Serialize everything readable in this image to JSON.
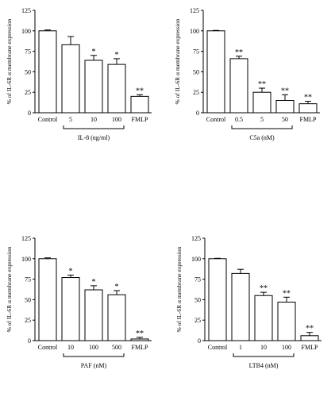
{
  "ylabel": "% of IL-6R α membrane expression",
  "yticks": [
    "0",
    "25",
    "50",
    "75",
    "100",
    "125"
  ],
  "ylim": [
    0,
    125
  ],
  "chart_data": [
    {
      "type": "bar",
      "categories": [
        "Control",
        "5",
        "10",
        "100",
        "FMLP"
      ],
      "values": [
        100,
        83,
        64,
        59,
        20
      ],
      "errors": [
        1,
        10,
        6,
        7,
        2
      ],
      "annotations": [
        "",
        "",
        "*",
        "*",
        "**"
      ],
      "group_label": "IL-8 (ng/ml)",
      "group_span": [
        1,
        3
      ],
      "ylabel": "% of IL-6R α membrane expression",
      "ylim": [
        0,
        125
      ]
    },
    {
      "type": "bar",
      "categories": [
        "Control",
        "0.5",
        "5",
        "50",
        "FMLP"
      ],
      "values": [
        100,
        66,
        25,
        15,
        11
      ],
      "errors": [
        0.5,
        3,
        5,
        7,
        3
      ],
      "annotations": [
        "",
        "**",
        "**",
        "**",
        "**"
      ],
      "group_label": "C5a (nM)",
      "group_span": [
        1,
        3
      ],
      "ylabel": "% of IL-6R α membrane expression",
      "ylim": [
        0,
        125
      ]
    },
    {
      "type": "bar",
      "categories": [
        "Control",
        "10",
        "100",
        "500",
        "FMLP"
      ],
      "values": [
        100,
        77,
        62,
        56,
        2
      ],
      "errors": [
        1,
        3,
        5,
        5,
        2
      ],
      "annotations": [
        "",
        "*",
        "*",
        "*",
        "**"
      ],
      "group_label": "PAF (nM)",
      "group_span": [
        1,
        3
      ],
      "ylabel": "% of IL-6R α membrane expression",
      "ylim": [
        0,
        125
      ]
    },
    {
      "type": "bar",
      "categories": [
        "Control",
        "1",
        "10",
        "100",
        "FMLP"
      ],
      "values": [
        100,
        82,
        55,
        47,
        6
      ],
      "errors": [
        0.5,
        5,
        4,
        6,
        4
      ],
      "annotations": [
        "",
        "",
        "**",
        "**",
        "**"
      ],
      "group_label": "LTB4 (nM)",
      "group_span": [
        1,
        3
      ],
      "ylabel": "% of IL-6R α membrane expression",
      "ylim": [
        0,
        125
      ]
    }
  ]
}
